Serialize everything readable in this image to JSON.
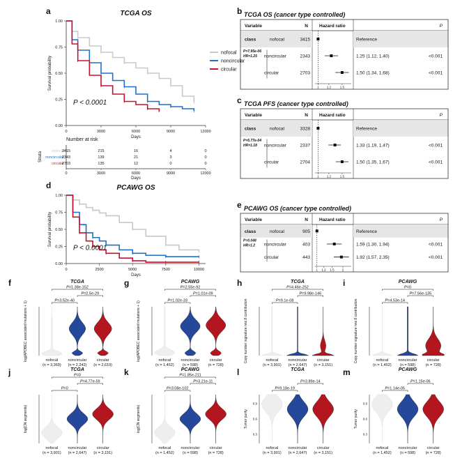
{
  "colors": {
    "nofocal": "#c8c8c8",
    "noncircular": "#1f6fc7",
    "circular": "#c8102e",
    "violin_nofocal": "#eeeeee",
    "violin_noncircular": "#26489a",
    "violin_circular": "#b3161f"
  },
  "panel_letters": [
    "a",
    "b",
    "c",
    "d",
    "e",
    "f",
    "g",
    "h",
    "i",
    "j",
    "k",
    "l",
    "m"
  ],
  "groups": [
    "nofocal",
    "noncircular",
    "circular"
  ],
  "chart_data": [
    {
      "id": "a",
      "type": "line",
      "title": "TCGA OS",
      "xlabel": "Days",
      "ylabel": "Survival probability",
      "xlim": [
        0,
        12000
      ],
      "ylim": [
        0,
        1
      ],
      "xticks": [
        "0",
        "3000",
        "6000",
        "9000",
        "12000"
      ],
      "yticks": [
        "0.00",
        "0.25",
        "0.50",
        "0.75",
        "1.00"
      ],
      "legend": [
        "nofocal",
        "noncircular",
        "circular"
      ],
      "legend_position": "right",
      "pvalue_label": "P < 0.0001",
      "series": [
        {
          "name": "nofocal",
          "x": [
            0,
            500,
            1000,
            2000,
            3000,
            4000,
            5000,
            6000,
            7000,
            8000,
            9000,
            10000,
            11000
          ],
          "y": [
            1.0,
            0.9,
            0.84,
            0.76,
            0.7,
            0.65,
            0.6,
            0.55,
            0.5,
            0.45,
            0.38,
            0.28,
            0.22
          ]
        },
        {
          "name": "noncircular",
          "x": [
            0,
            500,
            1000,
            2000,
            3000,
            4000,
            5000,
            6000,
            7000,
            8000,
            9000,
            10000,
            11000
          ],
          "y": [
            1.0,
            0.82,
            0.72,
            0.6,
            0.5,
            0.43,
            0.37,
            0.3,
            0.23,
            0.2,
            0.18,
            0.16,
            0.14
          ]
        },
        {
          "name": "circular",
          "x": [
            0,
            500,
            1000,
            2000,
            3000,
            4000,
            5000,
            6000,
            7000,
            8000
          ],
          "y": [
            1.0,
            0.78,
            0.62,
            0.48,
            0.38,
            0.3,
            0.23,
            0.2,
            0.16,
            0.13
          ]
        }
      ],
      "risk_table": {
        "title": "Number at risk",
        "axis_label": "Strata",
        "xlabel": "Days",
        "xticks": [
          "0",
          "3000",
          "6000",
          "9000",
          "12000"
        ],
        "rows": [
          {
            "name": "nofocal",
            "values": [
              "3415",
              "215",
              "16",
              "4",
              "0"
            ]
          },
          {
            "name": "noncircular",
            "values": [
              "2343",
              "139",
              "21",
              "3",
              "0"
            ]
          },
          {
            "name": "circular",
            "values": [
              "2703",
              "135",
              "12",
              "0",
              "0"
            ]
          }
        ]
      }
    },
    {
      "id": "b",
      "type": "table",
      "title": "TCGA OS (cancer type controlled)",
      "headers": {
        "variable": "Variable",
        "n": "N",
        "hr": "Hazard ratio",
        "p": "P"
      },
      "variable": "class",
      "stat_note_p": "P=7.95e-06",
      "stat_note_hr": "HR=1.25",
      "axis_ticks": [
        "1",
        "1.2",
        "1.5"
      ],
      "xlim": [
        0.95,
        1.75
      ],
      "rows": [
        {
          "level": "nofocal",
          "n": "3415",
          "est": 1.0,
          "lo": 1.0,
          "hi": 1.0,
          "text": "Reference",
          "p": ""
        },
        {
          "level": "noncircular",
          "n": "2343",
          "est": 1.25,
          "lo": 1.12,
          "hi": 1.4,
          "text": "1.25 (1.12, 1.40)",
          "p": "<0.001"
        },
        {
          "level": "circular",
          "n": "2703",
          "est": 1.5,
          "lo": 1.34,
          "hi": 1.68,
          "text": "1.50 (1.34, 1.68)",
          "p": "<0.001"
        }
      ]
    },
    {
      "id": "c",
      "type": "table",
      "title": "TCGA PFS (cancer type controlled)",
      "headers": {
        "variable": "Variable",
        "n": "N",
        "hr": "Hazard ratio",
        "p": "P"
      },
      "variable": "class",
      "stat_note_p": "P=5.77e-04",
      "stat_note_hr": "HR=1.18",
      "axis_ticks": [
        "1",
        "1.2",
        "1.5"
      ],
      "xlim": [
        0.95,
        1.75
      ],
      "rows": [
        {
          "level": "nofocal",
          "n": "3328",
          "est": 1.0,
          "lo": 1.0,
          "hi": 1.0,
          "text": "Reference",
          "p": ""
        },
        {
          "level": "noncircular",
          "n": "2337",
          "est": 1.33,
          "lo": 1.19,
          "hi": 1.47,
          "text": "1.33 (1.19, 1.47)",
          "p": "<0.001"
        },
        {
          "level": "circular",
          "n": "2704",
          "est": 1.5,
          "lo": 1.35,
          "hi": 1.67,
          "text": "1.50 (1.35, 1.67)",
          "p": "<0.001"
        }
      ]
    },
    {
      "id": "d",
      "type": "line",
      "title": "PCAWG OS",
      "xlabel": "Days",
      "ylabel": "Survival probability",
      "xlim": [
        0,
        10500
      ],
      "ylim": [
        0,
        1
      ],
      "xticks": [
        "0",
        "2500",
        "5000",
        "7500",
        "10000"
      ],
      "yticks": [
        "0.00",
        "0.25",
        "0.50",
        "0.75",
        "1.00"
      ],
      "pvalue_label": "P < 0.0001",
      "series": [
        {
          "name": "nofocal",
          "x": [
            0,
            500,
            1000,
            1500,
            2000,
            2500,
            3000,
            4000,
            5000,
            6000,
            7500,
            8500,
            10000
          ],
          "y": [
            1.0,
            0.93,
            0.87,
            0.82,
            0.78,
            0.74,
            0.7,
            0.6,
            0.5,
            0.4,
            0.27,
            0.2,
            0.18
          ]
        },
        {
          "name": "noncircular",
          "x": [
            0,
            500,
            1000,
            1500,
            2000,
            2500,
            3000,
            4000,
            5000,
            6000,
            7500,
            8500,
            10000
          ],
          "y": [
            1.0,
            0.75,
            0.57,
            0.45,
            0.38,
            0.33,
            0.27,
            0.2,
            0.15,
            0.12,
            0.1,
            0.1,
            0.1
          ]
        },
        {
          "name": "circular",
          "x": [
            0,
            500,
            1000,
            1500,
            2000,
            2500,
            3000,
            4000,
            5000,
            6000,
            7500,
            8500,
            10000
          ],
          "y": [
            1.0,
            0.68,
            0.45,
            0.33,
            0.25,
            0.2,
            0.15,
            0.08,
            0.04,
            0.02,
            0.02,
            0.02,
            0.02
          ]
        }
      ]
    },
    {
      "id": "e",
      "type": "table",
      "title": "PCAWG OS (cancer type controlled)",
      "headers": {
        "variable": "Variable",
        "n": "N",
        "hr": "Hazard ratio",
        "p": "P"
      },
      "variable": "class",
      "stat_note_p": "P=0.048",
      "stat_note_hr": "HR=1.2",
      "axis_ticks": [
        "1",
        "1.2",
        "1.5",
        "2"
      ],
      "xlim": [
        0.95,
        2.5
      ],
      "rows": [
        {
          "level": "nofocal",
          "n": "905",
          "est": 1.0,
          "lo": 1.0,
          "hi": 1.0,
          "text": "Reference",
          "p": ""
        },
        {
          "level": "noncircular",
          "n": "403",
          "est": 1.59,
          "lo": 1.3,
          "hi": 1.94,
          "text": "1.59 (1.30, 1.94)",
          "p": "<0.001"
        },
        {
          "level": "circular",
          "n": "443",
          "est": 1.92,
          "lo": 1.57,
          "hi": 2.35,
          "text": "1.92 (1.57, 2.35)",
          "p": "<0.001"
        }
      ]
    },
    {
      "id": "f",
      "type": "violin",
      "title": "TCGA",
      "ylabel": "log(APOBEC associated mutations + 1)",
      "categories": [
        "nofocal",
        "noncircular",
        "circular"
      ],
      "ns": [
        "(n = 3,369)",
        "(n = 2,242)",
        "(n = 2,619)"
      ],
      "brackets": [
        {
          "a": 0,
          "b": 1,
          "label": "P=3.52e-40",
          "level": 0
        },
        {
          "a": 1,
          "b": 2,
          "label": "P=2.5e-29",
          "level": 1
        },
        {
          "a": 0,
          "b": 2,
          "label": "P=1.38e-152",
          "level": 2
        }
      ],
      "shape": "bimodal_low"
    },
    {
      "id": "g",
      "type": "violin",
      "title": "PCAWG",
      "ylabel": "log(APOBEC associated mutations + 1)",
      "categories": [
        "nofocal",
        "noncircular",
        "circular"
      ],
      "ns": [
        "(n = 1,452)",
        "(n = 598)",
        "(n = 728)"
      ],
      "brackets": [
        {
          "a": 0,
          "b": 1,
          "label": "P=1.02e-33",
          "level": 0
        },
        {
          "a": 1,
          "b": 2,
          "label": "P=1.01e-09",
          "level": 1
        },
        {
          "a": 0,
          "b": 2,
          "label": "P=2.55e-92",
          "level": 2
        }
      ],
      "shape": "bimodal_high"
    },
    {
      "id": "h",
      "type": "violin",
      "title": "TCGA",
      "ylabel": "Copy number signature nnz.8 contribution",
      "categories": [
        "nofocal",
        "noncircular",
        "circular"
      ],
      "ns": [
        "(n = 3,901)",
        "(n = 2,647)",
        "(n = 3,151)"
      ],
      "brackets": [
        {
          "a": 0,
          "b": 1,
          "label": "P=9.1e-08",
          "level": 0
        },
        {
          "a": 1,
          "b": 2,
          "label": "P=9.98e-146",
          "level": 1
        },
        {
          "a": 0,
          "b": 2,
          "label": "P=4.46e-252",
          "level": 2
        }
      ],
      "shape": "spike"
    },
    {
      "id": "i",
      "type": "violin",
      "title": "PCAWG",
      "ylabel": "Copy number signature nnz.8 contribution",
      "categories": [
        "nofocal",
        "noncircular",
        "circular"
      ],
      "ns": [
        "(n = 1,452)",
        "(n = 598)",
        "(n = 728)"
      ],
      "brackets": [
        {
          "a": 0,
          "b": 1,
          "label": "P=4.53e-14",
          "level": 0
        },
        {
          "a": 1,
          "b": 2,
          "label": "P=7.56e-135",
          "level": 1
        },
        {
          "a": 0,
          "b": 2,
          "label": "P=0",
          "level": 2
        }
      ],
      "shape": "spike_wide"
    },
    {
      "id": "j",
      "type": "violin",
      "title": "TCGA",
      "ylabel": "log(CN segments)",
      "categories": [
        "nofocal",
        "noncircular",
        "circular"
      ],
      "ns": [
        "(n = 3,901)",
        "(n = 2,647)",
        "(n = 3,151)"
      ],
      "brackets": [
        {
          "a": 0,
          "b": 1,
          "label": "P=0",
          "level": 0
        },
        {
          "a": 1,
          "b": 2,
          "label": "P=4.77e-59",
          "level": 1
        },
        {
          "a": 0,
          "b": 2,
          "label": "P=0",
          "level": 2
        }
      ],
      "shape": "rising"
    },
    {
      "id": "k",
      "type": "violin",
      "title": "PCAWG",
      "ylabel": "log(CN segments)",
      "categories": [
        "nofocal",
        "noncircular",
        "circular"
      ],
      "ns": [
        "(n = 1,452)",
        "(n = 598)",
        "(n = 728)"
      ],
      "brackets": [
        {
          "a": 0,
          "b": 1,
          "label": "P=3.08e-102",
          "level": 0
        },
        {
          "a": 1,
          "b": 2,
          "label": "P=3.21e-11",
          "level": 1
        },
        {
          "a": 0,
          "b": 2,
          "label": "P=1.85e-211",
          "level": 2
        }
      ],
      "shape": "rising"
    },
    {
      "id": "l",
      "type": "violin",
      "title": "TCGA",
      "ylabel": "Tumor purity",
      "categories": [
        "nofocal",
        "noncircular",
        "circular"
      ],
      "ns": [
        "(n = 3,901)",
        "(n = 2,647)",
        "(n = 3,151)"
      ],
      "brackets": [
        {
          "a": 0,
          "b": 1,
          "label": "P=9.18e-19",
          "level": 0
        },
        {
          "a": 1,
          "b": 2,
          "label": "P=3.89e-14",
          "level": 1
        }
      ],
      "yticks": [
        "0.3",
        "0.6",
        "0.9"
      ],
      "shape": "purity"
    },
    {
      "id": "m",
      "type": "violin",
      "title": "PCAWG",
      "ylabel": "Tumor purity",
      "categories": [
        "nofocal",
        "noncircular",
        "circular"
      ],
      "ns": [
        "(n = 1,452)",
        "(n = 598)",
        "(n = 728)"
      ],
      "brackets": [
        {
          "a": 0,
          "b": 1,
          "label": "P=1.14e-05",
          "level": 0
        },
        {
          "a": 1,
          "b": 2,
          "label": "P=1.15e-06",
          "level": 1
        }
      ],
      "yticks": [
        "0.3",
        "0.6",
        "0.9"
      ],
      "shape": "purity"
    }
  ]
}
